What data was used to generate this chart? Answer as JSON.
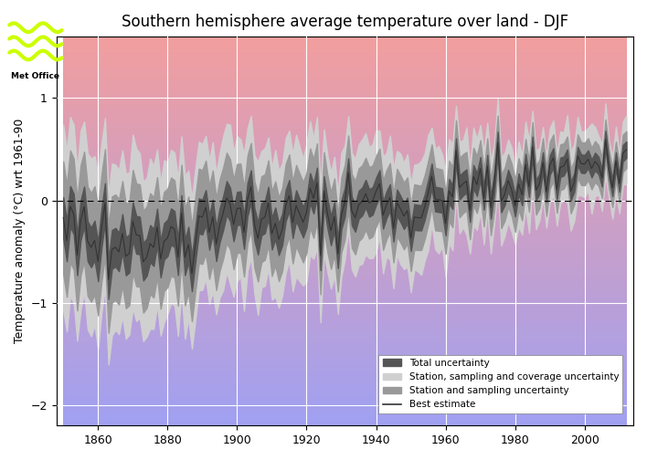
{
  "title": "Southern hemisphere average temperature over land - DJF",
  "ylabel": "Temperature anomaly (°C) wrt 1961-90",
  "xlabel": "",
  "year_start": 1850,
  "year_end": 2012,
  "ylim": [
    -2.2,
    1.6
  ],
  "yticks": [
    -2,
    -1,
    0,
    1
  ],
  "xticks": [
    1860,
    1880,
    1900,
    1920,
    1940,
    1960,
    1980,
    2000
  ],
  "background_top_color": "#f5a0a0",
  "background_bottom_color": "#a0a0f5",
  "grid_color": "#ffffff",
  "total_unc_color": "#555555",
  "coverage_unc_color": "#d0d0d0",
  "sampling_unc_color": "#999999",
  "best_estimate_color": "#333333",
  "legend_labels": [
    "Total uncertainty",
    "Station, sampling and coverage uncertainty",
    "Station and sampling uncertainty",
    "Best estimate"
  ],
  "met_office_logo_color": "#ccff00"
}
